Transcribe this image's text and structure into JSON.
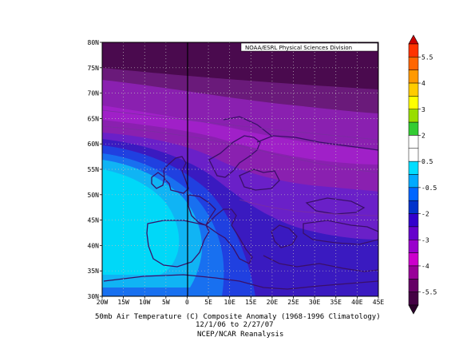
{
  "credit": "NOAA/ESRL Physical Sciences Division",
  "title_line1": "50mb Air Temperature (C) Composite Anomaly (1968-1996 Climatology)",
  "title_line2": "12/1/06  to 2/27/07",
  "title_line3": "NCEP/NCAR Reanalysis",
  "lat_labels": [
    "80N",
    "75N",
    "70N",
    "65N",
    "60N",
    "55N",
    "50N",
    "45N",
    "40N",
    "35N",
    "30N"
  ],
  "lon_labels": [
    "20W",
    "15W",
    "10W",
    "5W",
    "0",
    "5E",
    "10E",
    "15E",
    "20E",
    "25E",
    "30E",
    "35E",
    "40E",
    "45E"
  ],
  "map_extent": {
    "lon": [
      -20,
      45
    ],
    "lat": [
      30,
      80
    ]
  },
  "grid_dotted": true,
  "colorbar": {
    "labels": [
      "5.5",
      "4",
      "3",
      "2",
      "0.5",
      "-0.5",
      "-2",
      "-3",
      "-4",
      "-5.5"
    ],
    "colors": [
      "#ff3300",
      "#ff6600",
      "#ff9900",
      "#ffcc00",
      "#ffff00",
      "#99dd00",
      "#33cc33",
      "#ffffff",
      "#ffffff",
      "#00ddff",
      "#00aaff",
      "#0066ff",
      "#0033cc",
      "#3300cc",
      "#6600cc",
      "#9900cc",
      "#cc00cc",
      "#990099",
      "#660066",
      "#440044"
    ]
  },
  "shading_colors": {
    "darkest": "#4a0a4e",
    "dark_plum": "#6a1a7a",
    "purple": "#8a20b0",
    "magenta": "#a020c8",
    "violet": "#6a20c8",
    "indigo": "#3a1ac0",
    "blue_mid": "#2040e0",
    "blue": "#1870f0",
    "sky": "#10b4f4",
    "cyan": "#00d8f8",
    "coast": "#3a1068"
  }
}
